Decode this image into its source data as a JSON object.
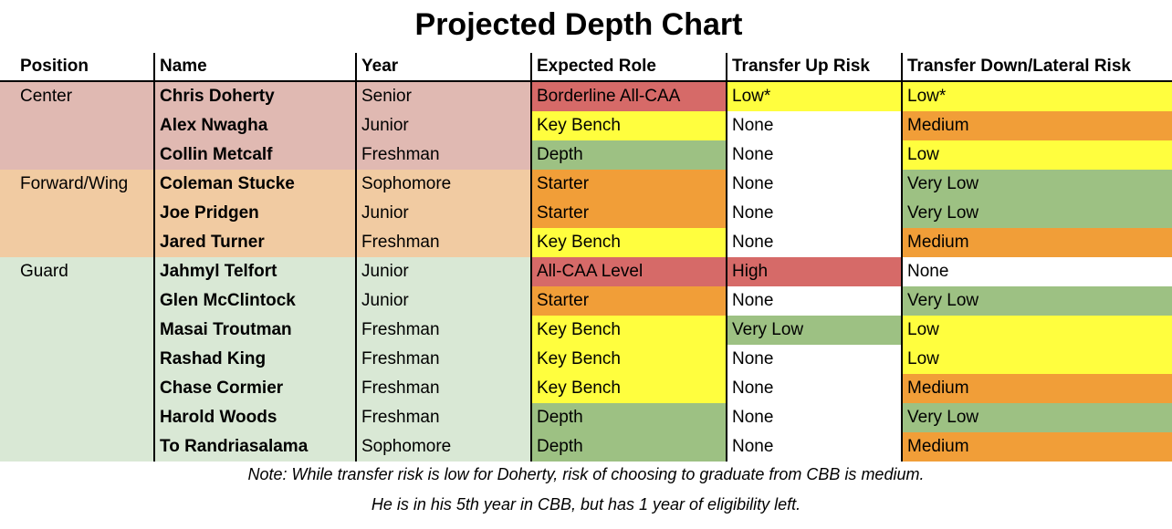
{
  "title": "Projected Depth Chart",
  "headers": [
    "Position",
    "Name",
    "Year",
    "Expected Role",
    "Transfer Up Risk",
    "Transfer Down/Lateral Risk"
  ],
  "colors": {
    "center": "#e0b9b2",
    "forward": "#f1cba2",
    "guard": "#d9e8d5",
    "red": "#d66a68",
    "orange": "#f19e38",
    "yellow": "#fffe3e",
    "green": "#9dc183",
    "white": "#ffffff"
  },
  "rows": [
    {
      "position": "Center",
      "pos_group": "center",
      "name": "Chris Doherty",
      "year": "Senior",
      "role": "Borderline All-CAA",
      "role_color": "red",
      "up": "Low*",
      "up_color": "yellow",
      "down": "Low*",
      "down_color": "yellow"
    },
    {
      "position": "",
      "pos_group": "center",
      "name": "Alex Nwagha",
      "year": "Junior",
      "role": "Key Bench",
      "role_color": "yellow",
      "up": "None",
      "up_color": "white",
      "down": "Medium",
      "down_color": "orange"
    },
    {
      "position": "",
      "pos_group": "center",
      "name": "Collin Metcalf",
      "year": "Freshman",
      "role": "Depth",
      "role_color": "green",
      "up": "None",
      "up_color": "white",
      "down": "Low",
      "down_color": "yellow"
    },
    {
      "position": "Forward/Wing",
      "pos_group": "forward",
      "name": "Coleman Stucke",
      "year": "Sophomore",
      "role": "Starter",
      "role_color": "orange",
      "up": "None",
      "up_color": "white",
      "down": "Very Low",
      "down_color": "green"
    },
    {
      "position": "",
      "pos_group": "forward",
      "name": "Joe Pridgen",
      "year": "Junior",
      "role": "Starter",
      "role_color": "orange",
      "up": "None",
      "up_color": "white",
      "down": "Very Low",
      "down_color": "green"
    },
    {
      "position": "",
      "pos_group": "forward",
      "name": "Jared Turner",
      "year": "Freshman",
      "role": "Key Bench",
      "role_color": "yellow",
      "up": "None",
      "up_color": "white",
      "down": "Medium",
      "down_color": "orange"
    },
    {
      "position": "Guard",
      "pos_group": "guard",
      "name": "Jahmyl Telfort",
      "year": "Junior",
      "role": "All-CAA Level",
      "role_color": "red",
      "up": "High",
      "up_color": "red",
      "down": "None",
      "down_color": "white"
    },
    {
      "position": "",
      "pos_group": "guard",
      "name": "Glen McClintock",
      "year": "Junior",
      "role": "Starter",
      "role_color": "orange",
      "up": "None",
      "up_color": "white",
      "down": "Very Low",
      "down_color": "green"
    },
    {
      "position": "",
      "pos_group": "guard",
      "name": "Masai Troutman",
      "year": "Freshman",
      "role": "Key Bench",
      "role_color": "yellow",
      "up": "Very Low",
      "up_color": "green",
      "down": "Low",
      "down_color": "yellow"
    },
    {
      "position": "",
      "pos_group": "guard",
      "name": "Rashad King",
      "year": "Freshman",
      "role": "Key Bench",
      "role_color": "yellow",
      "up": "None",
      "up_color": "white",
      "down": "Low",
      "down_color": "yellow"
    },
    {
      "position": "",
      "pos_group": "guard",
      "name": "Chase Cormier",
      "year": "Freshman",
      "role": "Key Bench",
      "role_color": "yellow",
      "up": "None",
      "up_color": "white",
      "down": "Medium",
      "down_color": "orange"
    },
    {
      "position": "",
      "pos_group": "guard",
      "name": "Harold Woods",
      "year": "Freshman",
      "role": "Depth",
      "role_color": "green",
      "up": "None",
      "up_color": "white",
      "down": "Very Low",
      "down_color": "green"
    },
    {
      "position": "",
      "pos_group": "guard",
      "name": "To Randriasalama",
      "year": "Sophomore",
      "role": "Depth",
      "role_color": "green",
      "up": "None",
      "up_color": "white",
      "down": "Medium",
      "down_color": "orange"
    }
  ],
  "notes": [
    "Note: While transfer risk is low for Doherty, risk of choosing to graduate from CBB is medium.",
    "He is in his 5th year in CBB, but has 1 year of eligibility left."
  ]
}
